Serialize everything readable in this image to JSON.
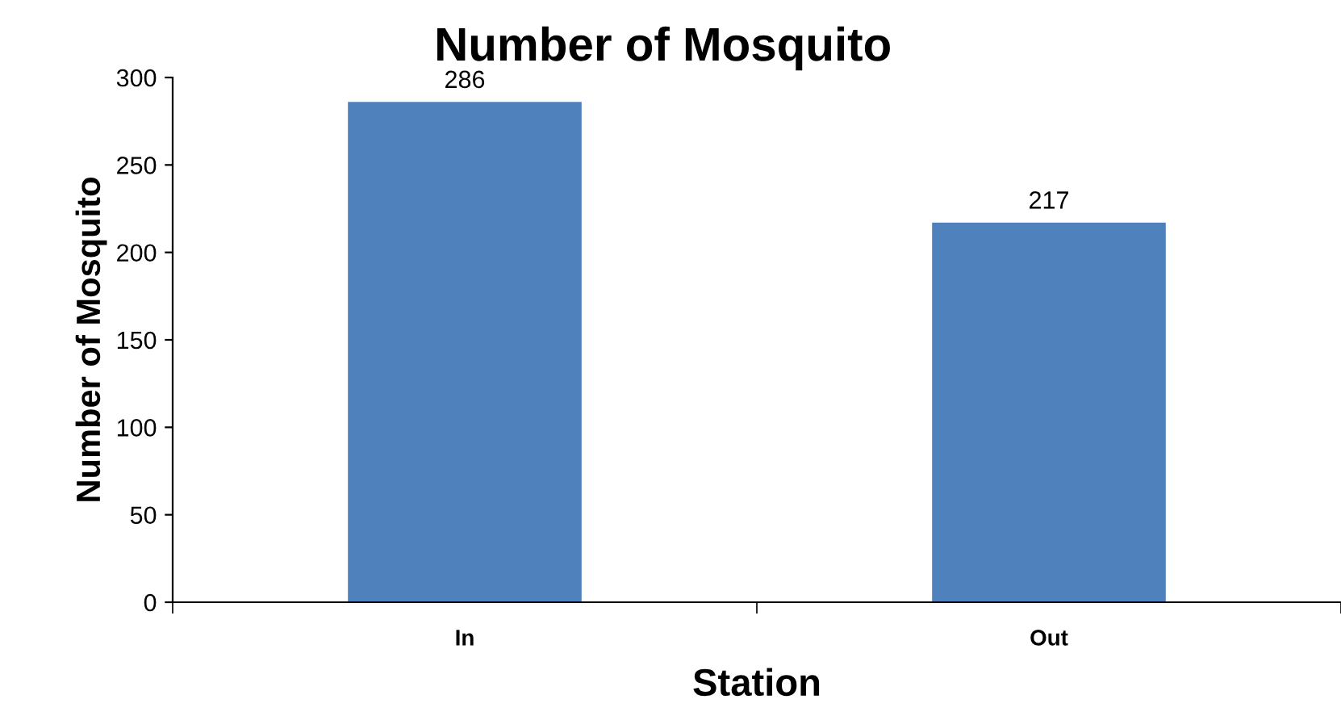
{
  "chart_data": {
    "type": "bar",
    "title": "Number of Mosquito",
    "xlabel": "Station",
    "ylabel": "Number of Mosquito",
    "categories": [
      "In",
      "Out"
    ],
    "values": [
      286,
      217
    ],
    "color": "#4f81bd",
    "ylim": [
      0,
      300
    ],
    "yticks": [
      0,
      50,
      100,
      150,
      200,
      250,
      300
    ],
    "data_labels": true,
    "grid": false,
    "legend": false
  }
}
